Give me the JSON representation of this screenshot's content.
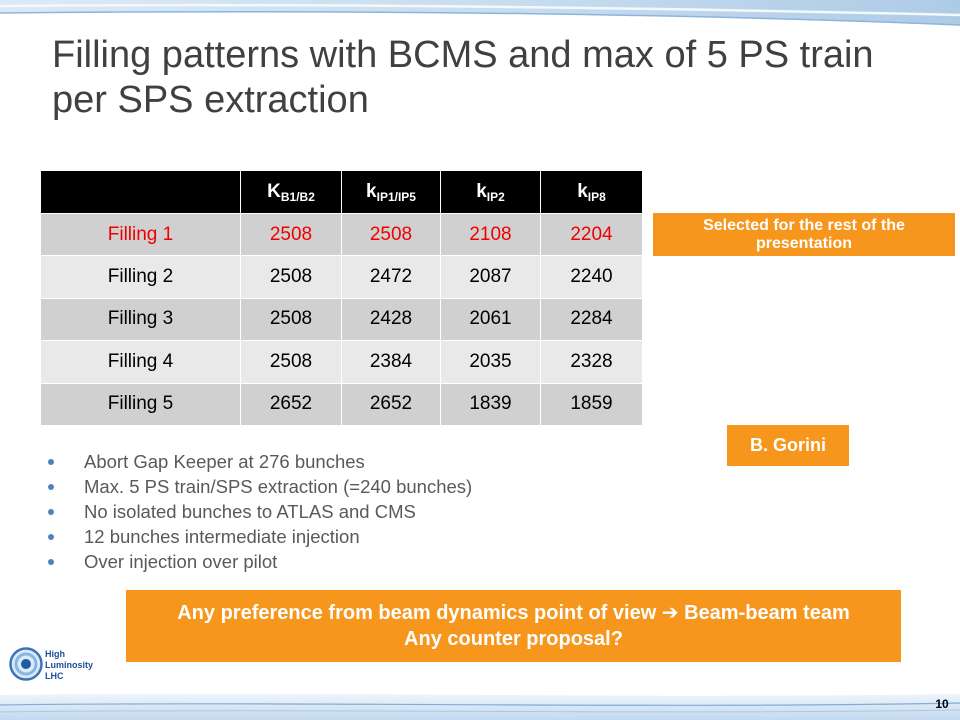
{
  "slide": {
    "title": "Filling patterns with BCMS and max of 5 PS train per SPS extraction",
    "page_number": "10"
  },
  "table": {
    "columns": [
      {
        "symbol": "K",
        "subscript": "B1/B2"
      },
      {
        "symbol": "k",
        "subscript": "IP1/IP5"
      },
      {
        "symbol": "k",
        "subscript": "IP2"
      },
      {
        "symbol": "k",
        "subscript": "IP8"
      }
    ],
    "rows": [
      {
        "label": "Filling 1",
        "values": [
          2508,
          2508,
          2108,
          2204
        ],
        "selected": true
      },
      {
        "label": "Filling 2",
        "values": [
          2508,
          2472,
          2087,
          2240
        ],
        "selected": false
      },
      {
        "label": "Filling 3",
        "values": [
          2508,
          2428,
          2061,
          2284
        ],
        "selected": false
      },
      {
        "label": "Filling 4",
        "values": [
          2508,
          2384,
          2035,
          2328
        ],
        "selected": false
      },
      {
        "label": "Filling 5",
        "values": [
          2652,
          2652,
          1839,
          1859
        ],
        "selected": false
      }
    ]
  },
  "callouts": {
    "selected_note": "Selected for the rest of the presentation",
    "author": "B. Gorini",
    "question_line1": "Any preference from beam dynamics point of view ➔ Beam-beam team",
    "question_line2": "Any counter proposal?"
  },
  "bullets": [
    "Abort Gap Keeper at 276 bunches",
    "Max. 5 PS train/SPS extraction (=240 bunches)",
    "No isolated bunches to ATLAS and CMS",
    "12 bunches intermediate injection",
    "Over injection over pilot"
  ],
  "logo": {
    "line1": "High",
    "line2": "Luminosity",
    "line3": "LHC"
  },
  "colors": {
    "title_text": "#404040",
    "body_text": "#595959",
    "accent_orange": "#f7961d",
    "selected_red": "#f00000",
    "bullet_blue": "#4f81bd",
    "header_bg": "#000000",
    "row_dark": "#d0d0d0",
    "row_light": "#e9e9e9"
  }
}
